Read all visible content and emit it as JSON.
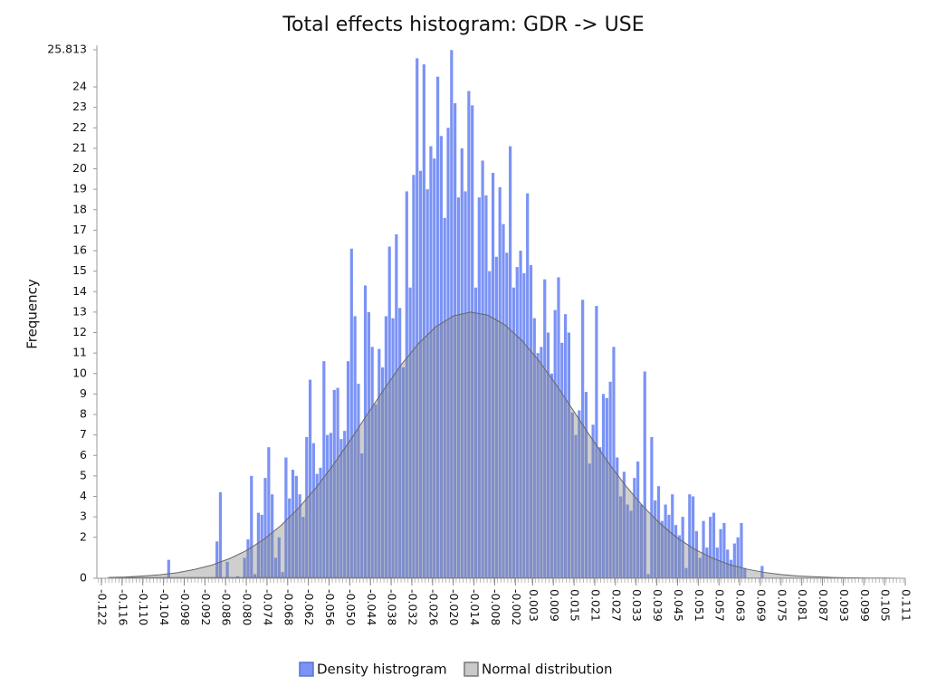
{
  "chart_data": {
    "type": "histogram",
    "title": "Total effects histogram: GDR -> USE",
    "y_label": "Frequency",
    "legend": "bottom",
    "xlim": [
      -0.122,
      0.111
    ],
    "ylim": [
      0,
      25.813
    ],
    "xticks": [
      -0.122,
      -0.116,
      {
        "value": -0.11,
        "label": "-0.110"
      },
      -0.104,
      -0.098,
      -0.092,
      -0.086,
      {
        "value": -0.08,
        "label": "-0.080"
      },
      -0.074,
      -0.068,
      -0.062,
      -0.056,
      {
        "value": -0.05,
        "label": "-0.050"
      },
      -0.044,
      -0.038,
      -0.032,
      -0.026,
      {
        "value": -0.02,
        "label": "-0.020"
      },
      -0.014,
      -0.008,
      -0.002,
      0.003,
      0.009,
      0.015,
      0.021,
      0.027,
      0.033,
      0.039,
      0.045,
      0.051,
      0.057,
      0.063,
      0.069,
      0.075,
      0.081,
      0.087,
      0.093,
      0.099,
      0.105,
      0.111
    ],
    "yticks": [
      0,
      2,
      3,
      4,
      5,
      6,
      7,
      8,
      9,
      10,
      11,
      12,
      13,
      14,
      15,
      16,
      17,
      18,
      19,
      20,
      21,
      22,
      23,
      24,
      25.813
    ],
    "bins": [
      -0.103,
      -0.102,
      -0.101,
      -0.1,
      -0.099,
      -0.098,
      -0.097,
      -0.096,
      -0.095,
      -0.094,
      -0.093,
      -0.092,
      -0.091,
      -0.09,
      -0.089,
      -0.088,
      -0.087,
      -0.086,
      -0.085,
      -0.084,
      -0.083,
      -0.082,
      -0.081,
      -0.08,
      -0.079,
      -0.078,
      -0.077,
      -0.076,
      -0.075,
      -0.074,
      -0.073,
      -0.072,
      -0.071,
      -0.07,
      -0.069,
      -0.068,
      -0.067,
      -0.066,
      -0.065,
      -0.064,
      -0.063,
      -0.062,
      -0.061,
      -0.06,
      -0.059,
      -0.058,
      -0.057,
      -0.056,
      -0.055,
      -0.054,
      -0.053,
      -0.052,
      -0.051,
      -0.05,
      -0.049,
      -0.048,
      -0.047,
      -0.046,
      -0.045,
      -0.044,
      -0.043,
      -0.042,
      -0.041,
      -0.04,
      -0.039,
      -0.038,
      -0.037,
      -0.036,
      -0.035,
      -0.034,
      -0.033,
      -0.032,
      -0.031,
      -0.03,
      -0.029,
      -0.028,
      -0.027,
      -0.026,
      -0.025,
      -0.024,
      -0.023,
      -0.022,
      -0.021,
      -0.02,
      -0.019,
      -0.018,
      -0.017,
      -0.016,
      -0.015,
      -0.014,
      -0.013,
      -0.012,
      -0.011,
      -0.01,
      -0.009,
      -0.008,
      -0.007,
      -0.006,
      -0.005,
      -0.004,
      -0.003,
      -0.002,
      -0.001,
      0,
      0.001,
      0.002,
      0.003,
      0.004,
      0.005,
      0.006,
      0.007,
      0.008,
      0.009,
      0.01,
      0.011,
      0.012,
      0.013,
      0.014,
      0.015,
      0.016,
      0.017,
      0.018,
      0.019,
      0.02,
      0.021,
      0.022,
      0.023,
      0.024,
      0.025,
      0.026,
      0.027,
      0.028,
      0.029,
      0.03,
      0.031,
      0.032,
      0.033,
      0.034,
      0.035,
      0.036,
      0.037,
      0.038,
      0.039,
      0.04,
      0.041,
      0.042,
      0.043,
      0.044,
      0.045,
      0.046,
      0.047,
      0.048,
      0.049,
      0.05,
      0.051,
      0.052,
      0.053,
      0.054,
      0.055,
      0.056,
      0.057,
      0.058,
      0.059,
      0.06,
      0.061,
      0.062,
      0.063,
      0.064,
      0.065,
      0.066,
      0.067,
      0.068,
      0.069,
      0.07
    ],
    "series": [
      {
        "name": "Density histrogram",
        "color": "#7b93f5",
        "values": [
          0.9,
          0,
          0,
          0,
          0,
          0,
          0,
          0,
          0,
          0,
          0,
          0,
          0,
          0,
          1.8,
          4.2,
          0,
          0.8,
          0,
          0,
          0.1,
          0,
          1,
          1.9,
          5,
          0.2,
          3.2,
          3.1,
          4.9,
          6.4,
          4.1,
          1,
          2,
          0.3,
          5.9,
          3.9,
          5.3,
          5,
          4.1,
          3,
          6.9,
          9.7,
          6.6,
          5.1,
          5.4,
          10.6,
          7,
          7.1,
          9.2,
          9.3,
          6.8,
          7.2,
          10.6,
          16.1,
          12.8,
          9.5,
          6.1,
          14.3,
          13,
          11.3,
          8.5,
          11.2,
          10.3,
          12.8,
          16.2,
          12.7,
          16.8,
          13.2,
          10.3,
          18.9,
          14.2,
          19.7,
          25.4,
          19.9,
          25.1,
          19,
          21.1,
          20.5,
          24.5,
          21.6,
          17.6,
          22,
          25.8,
          23.2,
          18.6,
          21,
          18.9,
          23.8,
          23.1,
          14.2,
          18.6,
          20.4,
          18.7,
          15,
          19.8,
          15.7,
          19.1,
          17.3,
          15.9,
          21.1,
          14.2,
          15.2,
          16,
          14.9,
          18.8,
          15.3,
          12.7,
          11,
          11.3,
          14.6,
          12,
          10,
          13.1,
          14.7,
          11.5,
          12.9,
          12,
          8.1,
          7,
          8.2,
          13.6,
          9.1,
          5.6,
          7.5,
          13.3,
          6.4,
          9,
          8.8,
          9.6,
          11.3,
          5.9,
          4,
          5.2,
          3.6,
          3.3,
          4.9,
          5.7,
          3.6,
          10.1,
          0.2,
          6.9,
          3.8,
          4.5,
          2.8,
          3.6,
          3.1,
          4.1,
          2.6,
          2.1,
          3,
          0.5,
          4.1,
          4,
          2.3,
          1,
          2.8,
          1.5,
          3,
          3.2,
          1.5,
          2.4,
          2.7,
          1.4,
          0.9,
          1.7,
          2,
          2.7,
          0.5,
          0,
          0,
          0,
          0,
          0.6
        ]
      },
      {
        "name": "Normal distribution",
        "type": "area",
        "color": "#888888",
        "x": [
          -0.12,
          -0.115,
          -0.11,
          -0.105,
          -0.1,
          -0.095,
          -0.09,
          -0.085,
          -0.08,
          -0.075,
          -0.07,
          -0.065,
          -0.06,
          -0.055,
          -0.05,
          -0.045,
          -0.04,
          -0.035,
          -0.03,
          -0.025,
          -0.02,
          -0.015,
          -0.01,
          -0.005,
          0,
          0.005,
          0.01,
          0.015,
          0.02,
          0.025,
          0.03,
          0.035,
          0.04,
          0.045,
          0.05,
          0.055,
          0.06,
          0.065,
          0.07,
          0.075,
          0.08,
          0.085,
          0.09,
          0.095,
          0.1,
          0.105,
          0.11
        ],
        "values": [
          0.04,
          0.06,
          0.11,
          0.17,
          0.27,
          0.43,
          0.64,
          0.95,
          1.35,
          1.89,
          2.57,
          3.4,
          4.38,
          5.49,
          6.71,
          7.99,
          9.25,
          10.45,
          11.48,
          12.29,
          12.81,
          13,
          12.85,
          12.37,
          11.59,
          10.58,
          9.41,
          8.14,
          6.86,
          5.63,
          4.51,
          3.51,
          2.66,
          1.96,
          1.41,
          0.99,
          0.67,
          0.45,
          0.29,
          0.18,
          0.11,
          0.07,
          0.04,
          0.02,
          0.01,
          0.01,
          0
        ]
      }
    ]
  }
}
